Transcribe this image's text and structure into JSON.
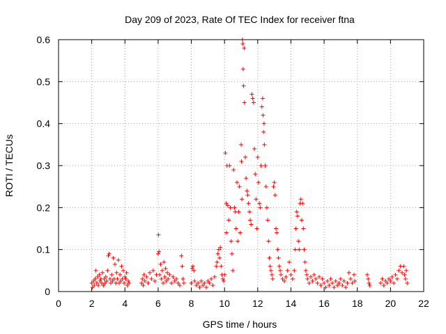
{
  "chart_data": {
    "type": "scatter",
    "title": "Day 209 of 2023, Rate Of TEC Index for receiver ftna",
    "xlabel": "GPS time / hours",
    "ylabel": "ROTI / TECUs",
    "xlim": [
      0,
      22
    ],
    "ylim": [
      0,
      0.6
    ],
    "xticks": [
      "0",
      "2",
      "4",
      "6",
      "8",
      "10",
      "12",
      "14",
      "16",
      "18",
      "20",
      "22"
    ],
    "yticks": [
      "0",
      "0.1",
      "0.2",
      "0.3",
      "0.4",
      "0.5",
      "0.6"
    ],
    "grid": true,
    "marker": "+",
    "series_color": "#ff0000",
    "series": [
      {
        "points": [
          [
            2.0,
            0.02
          ],
          [
            2.05,
            0.01
          ],
          [
            2.1,
            0.025
          ],
          [
            2.15,
            0.015
          ],
          [
            2.2,
            0.03
          ],
          [
            2.25,
            0.05
          ],
          [
            2.3,
            0.02
          ],
          [
            2.35,
            0.035
          ],
          [
            2.4,
            0.015
          ],
          [
            2.45,
            0.04
          ],
          [
            2.5,
            0.025
          ],
          [
            2.55,
            0.03
          ],
          [
            2.6,
            0.02
          ],
          [
            2.65,
            0.045
          ],
          [
            2.7,
            0.015
          ],
          [
            2.75,
            0.03
          ],
          [
            2.8,
            0.02
          ],
          [
            2.85,
            0.035
          ],
          [
            2.9,
            0.025
          ],
          [
            2.95,
            0.05
          ],
          [
            3.0,
            0.085
          ],
          [
            3.05,
            0.09
          ],
          [
            3.1,
            0.03
          ],
          [
            3.15,
            0.02
          ],
          [
            3.2,
            0.04
          ],
          [
            3.25,
            0.025
          ],
          [
            3.3,
            0.08
          ],
          [
            3.35,
            0.03
          ],
          [
            3.4,
            0.065
          ],
          [
            3.45,
            0.02
          ],
          [
            3.5,
            0.045
          ],
          [
            3.55,
            0.03
          ],
          [
            3.6,
            0.075
          ],
          [
            3.65,
            0.02
          ],
          [
            3.7,
            0.04
          ],
          [
            3.75,
            0.025
          ],
          [
            3.8,
            0.06
          ],
          [
            3.85,
            0.03
          ],
          [
            3.9,
            0.05
          ],
          [
            3.95,
            0.02
          ],
          [
            4.0,
            0.035
          ],
          [
            4.05,
            0.03
          ],
          [
            4.1,
            0.045
          ],
          [
            4.15,
            0.015
          ],
          [
            4.2,
            0.025
          ],
          [
            4.25,
            0.02
          ],
          [
            5.0,
            0.02
          ],
          [
            5.05,
            0.03
          ],
          [
            5.1,
            0.015
          ],
          [
            5.15,
            0.04
          ],
          [
            5.2,
            0.025
          ],
          [
            5.3,
            0.035
          ],
          [
            5.4,
            0.02
          ],
          [
            5.5,
            0.045
          ],
          [
            5.6,
            0.03
          ],
          [
            5.7,
            0.05
          ],
          [
            5.8,
            0.025
          ],
          [
            5.9,
            0.04
          ],
          [
            6.0,
            0.09
          ],
          [
            6.02,
            0.135
          ],
          [
            6.05,
            0.095
          ],
          [
            6.1,
            0.04
          ],
          [
            6.15,
            0.065
          ],
          [
            6.2,
            0.03
          ],
          [
            6.25,
            0.05
          ],
          [
            6.3,
            0.02
          ],
          [
            6.35,
            0.07
          ],
          [
            6.4,
            0.035
          ],
          [
            6.45,
            0.055
          ],
          [
            6.5,
            0.025
          ],
          [
            6.55,
            0.045
          ],
          [
            6.6,
            0.03
          ],
          [
            6.7,
            0.04
          ],
          [
            6.8,
            0.02
          ],
          [
            6.9,
            0.035
          ],
          [
            7.0,
            0.025
          ],
          [
            7.1,
            0.03
          ],
          [
            7.2,
            0.02
          ],
          [
            7.3,
            0.015
          ],
          [
            7.4,
            0.085
          ],
          [
            7.45,
            0.06
          ],
          [
            7.5,
            0.03
          ],
          [
            7.55,
            0.02
          ],
          [
            8.0,
            0.02
          ],
          [
            8.05,
            0.055
          ],
          [
            8.1,
            0.06
          ],
          [
            8.15,
            0.05
          ],
          [
            8.2,
            0.025
          ],
          [
            8.3,
            0.015
          ],
          [
            8.4,
            0.02
          ],
          [
            8.5,
            0.01
          ],
          [
            8.6,
            0.025
          ],
          [
            8.7,
            0.015
          ],
          [
            8.8,
            0.02
          ],
          [
            8.9,
            0.01
          ],
          [
            9.0,
            0.025
          ],
          [
            9.1,
            0.02
          ],
          [
            9.2,
            0.03
          ],
          [
            9.3,
            0.015
          ],
          [
            9.4,
            0.035
          ],
          [
            9.5,
            0.06
          ],
          [
            9.55,
            0.07
          ],
          [
            9.6,
            0.09
          ],
          [
            9.65,
            0.1
          ],
          [
            9.7,
            0.08
          ],
          [
            9.75,
            0.105
          ],
          [
            9.8,
            0.06
          ],
          [
            9.85,
            0.04
          ],
          [
            9.9,
            0.03
          ],
          [
            9.95,
            0.025
          ],
          [
            10.0,
            0.04
          ],
          [
            10.05,
            0.33
          ],
          [
            10.1,
            0.21
          ],
          [
            10.12,
            0.14
          ],
          [
            10.15,
            0.3
          ],
          [
            10.2,
            0.205
          ],
          [
            10.25,
            0.17
          ],
          [
            10.3,
            0.3
          ],
          [
            10.35,
            0.2
          ],
          [
            10.4,
            0.12
          ],
          [
            10.45,
            0.09
          ],
          [
            10.5,
            0.05
          ],
          [
            10.55,
            0.29
          ],
          [
            10.6,
            0.2
          ],
          [
            10.65,
            0.19
          ],
          [
            10.7,
            0.15
          ],
          [
            10.75,
            0.26
          ],
          [
            10.8,
            0.12
          ],
          [
            10.85,
            0.19
          ],
          [
            10.9,
            0.25
          ],
          [
            10.95,
            0.14
          ],
          [
            11.0,
            0.35
          ],
          [
            11.02,
            0.31
          ],
          [
            11.05,
            0.22
          ],
          [
            11.08,
            0.6
          ],
          [
            11.1,
            0.59
          ],
          [
            11.12,
            0.53
          ],
          [
            11.15,
            0.49
          ],
          [
            11.18,
            0.58
          ],
          [
            11.2,
            0.45
          ],
          [
            11.25,
            0.32
          ],
          [
            11.3,
            0.27
          ],
          [
            11.35,
            0.24
          ],
          [
            11.4,
            0.23
          ],
          [
            11.45,
            0.21
          ],
          [
            11.5,
            0.19
          ],
          [
            11.55,
            0.17
          ],
          [
            11.6,
            0.16
          ],
          [
            11.65,
            0.47
          ],
          [
            11.7,
            0.46
          ],
          [
            11.75,
            0.45
          ],
          [
            11.8,
            0.34
          ],
          [
            11.85,
            0.28
          ],
          [
            11.9,
            0.22
          ],
          [
            11.95,
            0.15
          ],
          [
            12.0,
            0.32
          ],
          [
            12.05,
            0.26
          ],
          [
            12.1,
            0.21
          ],
          [
            12.15,
            0.2
          ],
          [
            12.2,
            0.3
          ],
          [
            12.25,
            0.44
          ],
          [
            12.3,
            0.46
          ],
          [
            12.32,
            0.42
          ],
          [
            12.35,
            0.38
          ],
          [
            12.38,
            0.4
          ],
          [
            12.4,
            0.35
          ],
          [
            12.45,
            0.3
          ],
          [
            12.5,
            0.25
          ],
          [
            12.55,
            0.2
          ],
          [
            12.6,
            0.17
          ],
          [
            12.65,
            0.12
          ],
          [
            12.7,
            0.08
          ],
          [
            12.75,
            0.06
          ],
          [
            12.8,
            0.05
          ],
          [
            12.85,
            0.04
          ],
          [
            12.9,
            0.03
          ],
          [
            12.95,
            0.25
          ],
          [
            13.0,
            0.26
          ],
          [
            13.05,
            0.23
          ],
          [
            13.1,
            0.15
          ],
          [
            13.15,
            0.14
          ],
          [
            13.2,
            0.1
          ],
          [
            13.25,
            0.08
          ],
          [
            13.3,
            0.06
          ],
          [
            13.35,
            0.05
          ],
          [
            13.4,
            0.04
          ],
          [
            13.5,
            0.03
          ],
          [
            13.6,
            0.025
          ],
          [
            13.7,
            0.035
          ],
          [
            13.8,
            0.05
          ],
          [
            13.9,
            0.07
          ],
          [
            14.0,
            0.04
          ],
          [
            14.1,
            0.03
          ],
          [
            14.2,
            0.05
          ],
          [
            14.25,
            0.1
          ],
          [
            14.3,
            0.15
          ],
          [
            14.35,
            0.19
          ],
          [
            14.4,
            0.18
          ],
          [
            14.45,
            0.12
          ],
          [
            14.5,
            0.1
          ],
          [
            14.55,
            0.21
          ],
          [
            14.6,
            0.22
          ],
          [
            14.65,
            0.17
          ],
          [
            14.7,
            0.21
          ],
          [
            14.75,
            0.15
          ],
          [
            14.8,
            0.1
          ],
          [
            14.85,
            0.07
          ],
          [
            14.9,
            0.05
          ],
          [
            14.95,
            0.04
          ],
          [
            15.0,
            0.03
          ],
          [
            15.1,
            0.02
          ],
          [
            15.2,
            0.035
          ],
          [
            15.3,
            0.025
          ],
          [
            15.4,
            0.04
          ],
          [
            15.5,
            0.03
          ],
          [
            15.6,
            0.02
          ],
          [
            15.7,
            0.035
          ],
          [
            15.8,
            0.015
          ],
          [
            15.9,
            0.03
          ],
          [
            16.0,
            0.02
          ],
          [
            16.1,
            0.01
          ],
          [
            16.2,
            0.025
          ],
          [
            16.3,
            0.015
          ],
          [
            16.4,
            0.03
          ],
          [
            16.5,
            0.02
          ],
          [
            16.6,
            0.01
          ],
          [
            16.7,
            0.025
          ],
          [
            16.8,
            0.015
          ],
          [
            16.9,
            0.02
          ],
          [
            17.0,
            0.03
          ],
          [
            17.1,
            0.015
          ],
          [
            17.2,
            0.025
          ],
          [
            17.3,
            0.01
          ],
          [
            17.4,
            0.02
          ],
          [
            17.5,
            0.045
          ],
          [
            17.6,
            0.03
          ],
          [
            17.7,
            0.02
          ],
          [
            17.8,
            0.04
          ],
          [
            17.85,
            0.025
          ],
          [
            18.6,
            0.04
          ],
          [
            18.65,
            0.03
          ],
          [
            18.7,
            0.02
          ],
          [
            18.75,
            0.015
          ],
          [
            19.4,
            0.02
          ],
          [
            19.5,
            0.03
          ],
          [
            19.6,
            0.015
          ],
          [
            19.7,
            0.025
          ],
          [
            19.8,
            0.02
          ],
          [
            19.9,
            0.03
          ],
          [
            20.0,
            0.025
          ],
          [
            20.1,
            0.035
          ],
          [
            20.2,
            0.02
          ],
          [
            20.3,
            0.04
          ],
          [
            20.4,
            0.03
          ],
          [
            20.5,
            0.05
          ],
          [
            20.6,
            0.06
          ],
          [
            20.7,
            0.045
          ],
          [
            20.8,
            0.06
          ],
          [
            20.85,
            0.04
          ],
          [
            20.9,
            0.03
          ],
          [
            20.95,
            0.05
          ],
          [
            21.0,
            0.02
          ]
        ]
      }
    ]
  }
}
